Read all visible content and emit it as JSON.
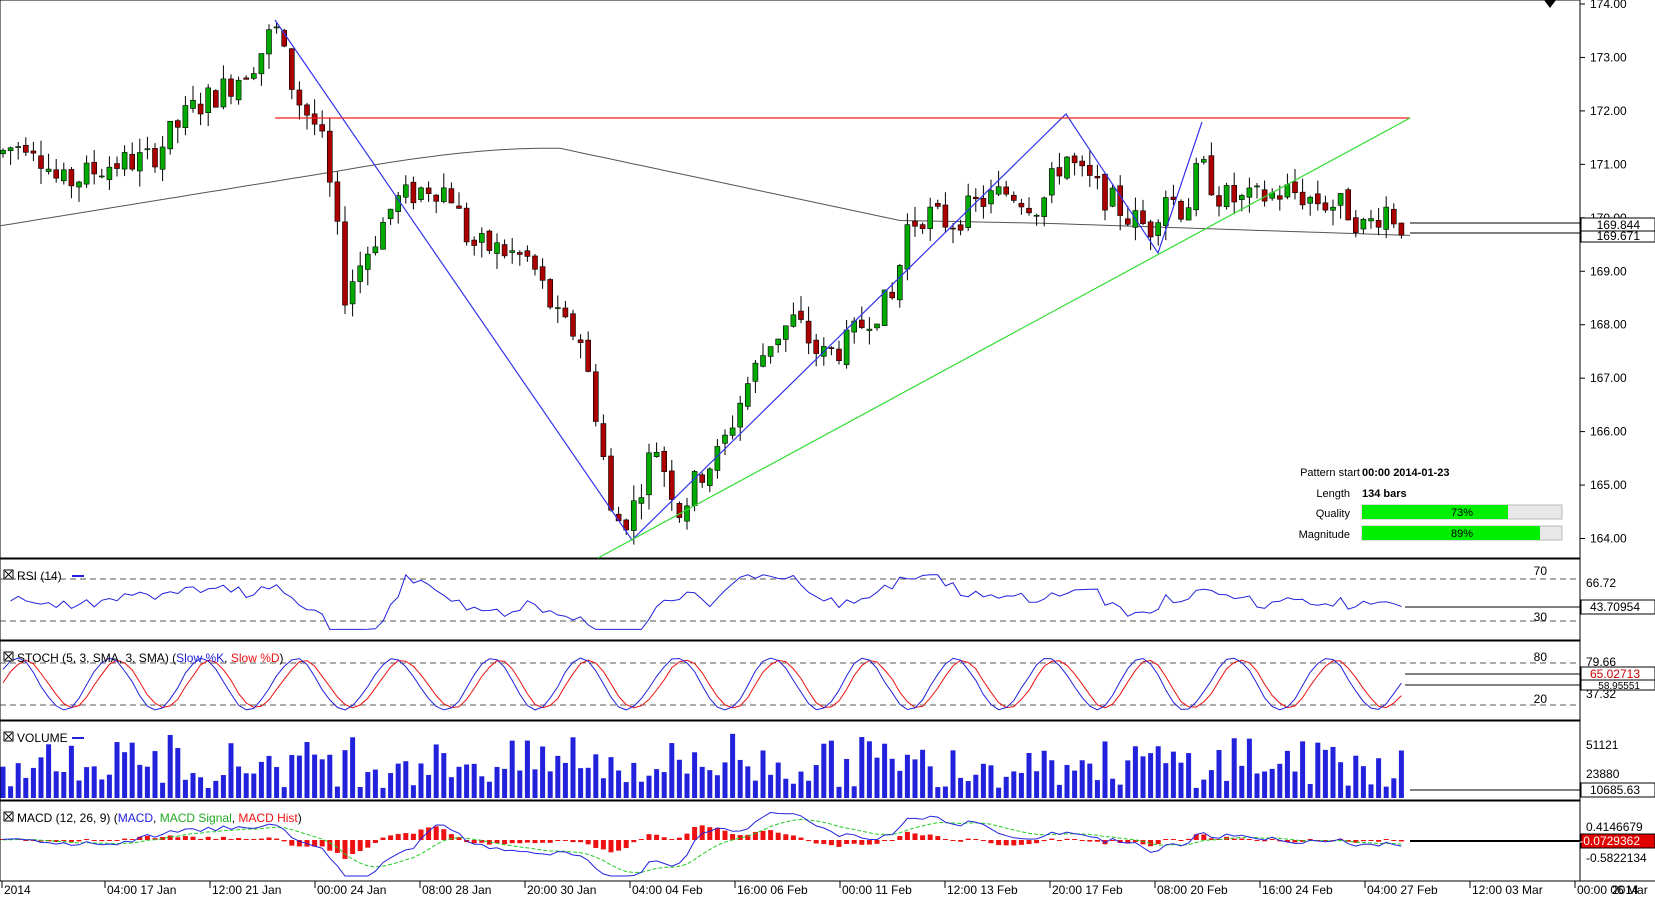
{
  "colors": {
    "bull": "#00aa00",
    "bear": "#aa0000",
    "pattern_line": "#3333ee",
    "support_line": "#33dd33",
    "resistance_line": "#ee2222",
    "ma_line": "#555555",
    "volume_bar": "#2222dd",
    "macd_line": "#2222dd",
    "macd_signal": "#22cc22",
    "macd_hist": "#ee1111",
    "rsi_line": "#2222dd",
    "stoch_k": "#2222dd",
    "stoch_d": "#ee1111",
    "quality_fill": "#00ee00"
  },
  "pattern_info": {
    "start_label": "Pattern start",
    "start_value": "00:00 2014-01-23",
    "length_label": "Length",
    "length_value": "134 bars",
    "quality_label": "Quality",
    "quality_value": "73%",
    "quality_pct": 73,
    "magnitude_label": "Magnitude",
    "magnitude_value": "89%",
    "magnitude_pct": 89
  },
  "price_badges": {
    "close": "169.844",
    "ma": "169.671"
  },
  "rsi": {
    "label": "RSI (14)",
    "level_high": "70",
    "level_low": "30",
    "tick": "66.72",
    "value": "43.70954"
  },
  "stoch": {
    "label_main": "STOCH (5, 3, SMA, 3, SMA) (",
    "label_k": "Slow %K",
    "label_sep": ", ",
    "label_d": "Slow %D",
    "label_end": ")",
    "level_high": "80",
    "level_low": "20",
    "tick_top": "79.66",
    "tick_low": "37.32",
    "value_k": "65.02713",
    "value_d": "58.95551"
  },
  "volume": {
    "label": "VOLUME",
    "tick_top": "51121",
    "tick_mid": "23880",
    "value": "10685.63"
  },
  "macd": {
    "label_main": "MACD (12, 26, 9) (",
    "label_macd": "MACD",
    "label_sep1": ", ",
    "label_signal": "MACD Signal",
    "label_sep2": ", ",
    "label_hist": "MACD Hist",
    "label_end": ")",
    "tick_top": "0.4146679",
    "tick_bottom": "-0.5822134",
    "value": "-0.0729362"
  },
  "chart_data": {
    "type": "candlestick",
    "title": "",
    "xlabel": "",
    "ylabel": "",
    "ylim": [
      163.55,
      174.0
    ],
    "y_ticks": [
      "164.00",
      "165.00",
      "166.00",
      "167.00",
      "168.00",
      "169.00",
      "170.00",
      "171.00",
      "172.00",
      "173.00",
      "174.00"
    ],
    "x_tick_labels": [
      "2014",
      "04:00 17 Jan",
      "12:00 21 Jan",
      "00:00 24 Jan",
      "08:00 28 Jan",
      "20:00 30 Jan",
      "04:00 04 Feb",
      "16:00 06 Feb",
      "00:00 11 Feb",
      "12:00 13 Feb",
      "20:00 17 Feb",
      "08:00 20 Feb",
      "16:00 24 Feb",
      "04:00 27 Feb",
      "12:00 03 Mar",
      "00:00 06 Mar"
    ],
    "last_partial_tick": "2014",
    "pattern_points": [
      {
        "time": "12:00 21 Jan",
        "price": 173.7
      },
      {
        "time": "04:00 04 Feb",
        "price": 163.9
      },
      {
        "time": "20:00 17 Feb",
        "price": 171.9
      },
      {
        "time": "08:00 20 Feb",
        "price": 169.3
      },
      {
        "time": "08:00 20 Feb",
        "price": 171.75
      }
    ],
    "resistance_level": 171.85,
    "support_line": {
      "start_price": 163.5,
      "end_price": 171.8
    },
    "moving_average_last": 169.671,
    "close_last": 169.844,
    "series_count": 1
  }
}
